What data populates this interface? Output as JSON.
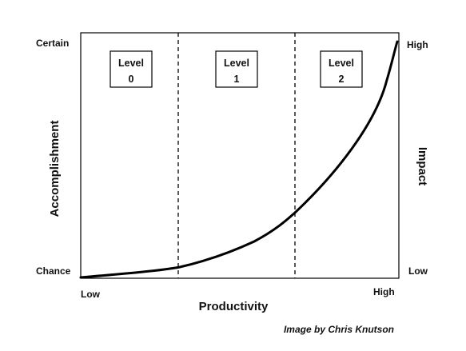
{
  "left_axis": {
    "top_label": "Certain",
    "bottom_label": "Chance",
    "title": "Accomplishment"
  },
  "right_axis": {
    "top_label": "High",
    "bottom_label": "Low",
    "title": "Impact"
  },
  "x_axis": {
    "left_label": "Low",
    "right_label": "High",
    "title": "Productivity"
  },
  "levels": [
    {
      "word": "Level",
      "number": "0"
    },
    {
      "word": "Level",
      "number": "1"
    },
    {
      "word": "Level",
      "number": "2"
    }
  ],
  "credit": "Image by Chris Knutson",
  "colors": {
    "line": "#000000",
    "frame": "#000000",
    "text": "#111111",
    "background": "#ffffff"
  }
}
